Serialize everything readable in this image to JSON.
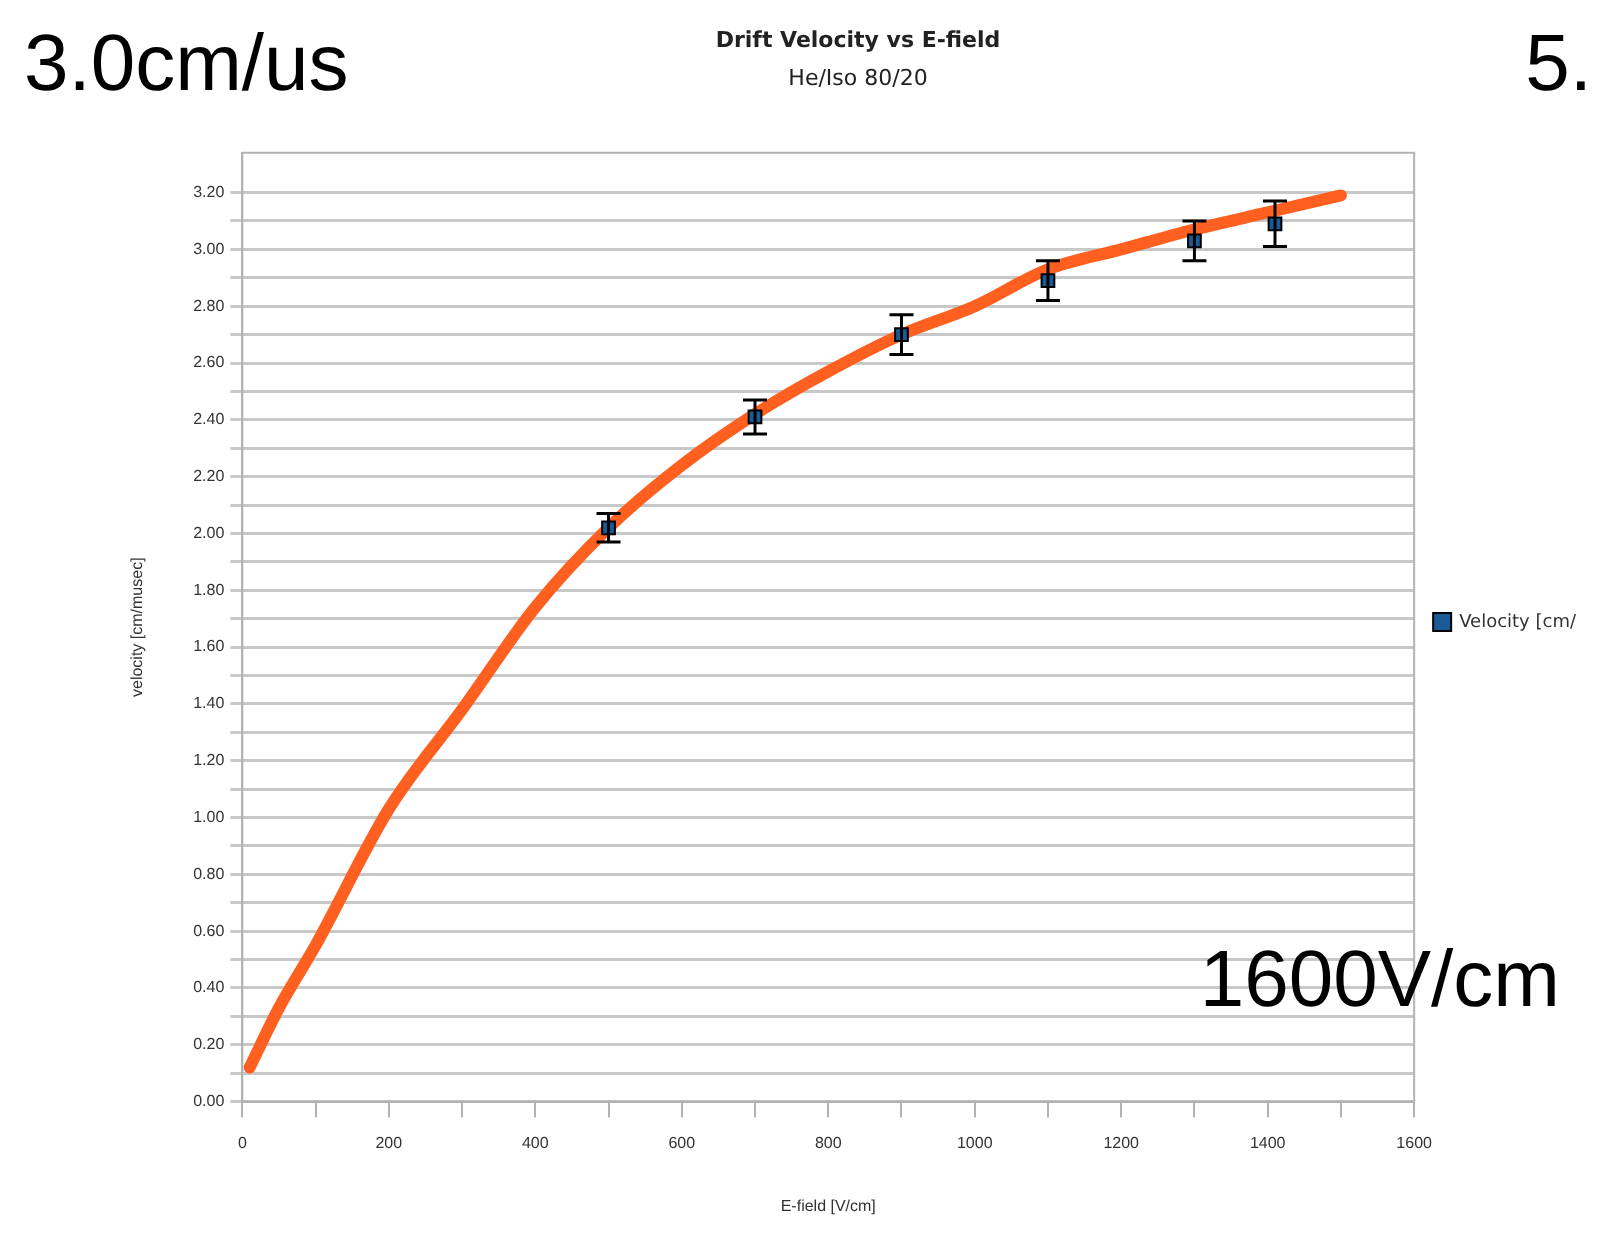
{
  "chart_data": {
    "type": "scatter",
    "title": "Drift Velocity vs E-field",
    "subtitle": "He/Iso 80/20",
    "xlabel": "E-field [V/cm]",
    "ylabel": "velocity [cm/musec]",
    "annotations": [
      "3.0cm/us",
      "5.",
      "1600V/cm"
    ],
    "xlim": [
      0,
      1600
    ],
    "xticks": [
      0,
      {
        "value": 100,
        "label": null
      },
      200,
      {
        "value": 300,
        "label": null
      },
      400,
      {
        "value": 500,
        "label": null
      },
      600,
      {
        "value": 700,
        "label": null
      },
      800,
      {
        "value": 900,
        "label": null
      },
      1000,
      {
        "value": 1100,
        "label": null
      },
      1200,
      {
        "value": 1300,
        "label": null
      },
      1400,
      {
        "value": 1500,
        "label": null
      },
      1600
    ],
    "ylim": [
      0,
      3.34
    ],
    "yticks": [
      {
        "value": 0,
        "label": "0.00"
      },
      {
        "value": 0.1,
        "label": null
      },
      {
        "value": 0.2,
        "label": "0.20"
      },
      {
        "value": 0.3,
        "label": null
      },
      {
        "value": 0.4,
        "label": "0.40"
      },
      {
        "value": 0.5,
        "label": null
      },
      {
        "value": 0.6,
        "label": "0.60"
      },
      {
        "value": 0.7,
        "label": null
      },
      {
        "value": 0.8,
        "label": "0.80"
      },
      {
        "value": 0.9,
        "label": null
      },
      {
        "value": 1,
        "label": "1.00"
      },
      {
        "value": 1.1,
        "label": null
      },
      {
        "value": 1.2,
        "label": "1.20"
      },
      {
        "value": 1.3,
        "label": null
      },
      {
        "value": 1.4,
        "label": "1.40"
      },
      {
        "value": 1.5,
        "label": null
      },
      {
        "value": 1.6,
        "label": "1.60"
      },
      {
        "value": 1.7,
        "label": null
      },
      {
        "value": 1.8,
        "label": "1.80"
      },
      {
        "value": 1.9,
        "label": null
      },
      {
        "value": 2,
        "label": "2.00"
      },
      {
        "value": 2.1,
        "label": null
      },
      {
        "value": 2.2,
        "label": "2.20"
      },
      {
        "value": 2.3,
        "label": null
      },
      {
        "value": 2.4,
        "label": "2.40"
      },
      {
        "value": 2.5,
        "label": null
      },
      {
        "value": 2.6,
        "label": "2.60"
      },
      {
        "value": 2.7,
        "label": null
      },
      {
        "value": 2.8,
        "label": "2.80"
      },
      {
        "value": 2.9,
        "label": null
      },
      {
        "value": 3,
        "label": "3.00"
      },
      {
        "value": 3.1,
        "label": null
      },
      {
        "value": 3.2,
        "label": "3.20"
      }
    ],
    "grid": "y",
    "legend": "right",
    "series": [
      {
        "name": "Velocity [cm/",
        "type": "scatter",
        "color": "#1a5a96",
        "marker": "square",
        "x": [
          500,
          700,
          900,
          1100,
          1300,
          1410
        ],
        "values": [
          2.02,
          2.41,
          2.7,
          2.89,
          3.03,
          3.09
        ],
        "errors": [
          0.05,
          0.06,
          0.07,
          0.07,
          0.07,
          0.08
        ]
      },
      {
        "type": "line",
        "color": "#ff6020",
        "marker": "none",
        "x": [
          10,
          50,
          100,
          200,
          300,
          400,
          500,
          600,
          700,
          800,
          900,
          1000,
          1100,
          1200,
          1300,
          1400,
          1500
        ],
        "values": [
          0.12,
          0.33,
          0.55,
          1.03,
          1.38,
          1.74,
          2.02,
          2.24,
          2.42,
          2.57,
          2.7,
          2.8,
          2.93,
          3.0,
          3.07,
          3.13,
          3.19
        ]
      }
    ]
  }
}
